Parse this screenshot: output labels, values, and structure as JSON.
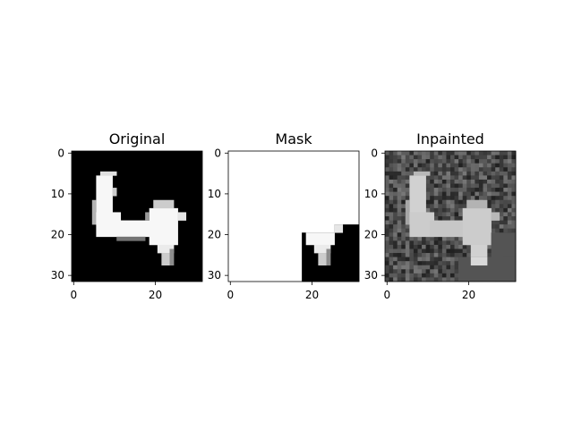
{
  "figure": {
    "background": "#ffffff",
    "axis_color": "#000000"
  },
  "chart_data": [
    {
      "type": "heatmap",
      "title": "Original",
      "colormap": "gray",
      "image_size": [
        32,
        32
      ],
      "xticks": [
        "0",
        "20"
      ],
      "yticks": [
        "0",
        "10",
        "20",
        "30"
      ],
      "xlim": [
        -0.5,
        31.5
      ],
      "ylim": [
        31.5,
        -0.5
      ],
      "content": "white handwritten digit '4' on black background",
      "rects": [
        {
          "x0": 6,
          "x1": 10,
          "y0": 6,
          "y1": 15,
          "v": 0.97
        },
        {
          "x0": 7,
          "x1": 11,
          "y0": 5,
          "y1": 6,
          "v": 0.88
        },
        {
          "x0": 5,
          "x1": 6,
          "y0": 12,
          "y1": 18,
          "v": 0.7
        },
        {
          "x0": 6,
          "x1": 12,
          "y0": 15,
          "y1": 21,
          "v": 0.97
        },
        {
          "x0": 11,
          "x1": 20,
          "y0": 17,
          "y1": 21,
          "v": 0.97
        },
        {
          "x0": 19,
          "x1": 26,
          "y0": 14,
          "y1": 23,
          "v": 0.97
        },
        {
          "x0": 20,
          "x1": 25,
          "y0": 12,
          "y1": 14,
          "v": 0.8
        },
        {
          "x0": 26,
          "x1": 28,
          "y0": 15,
          "y1": 17,
          "v": 0.9
        },
        {
          "x0": 21,
          "x1": 25,
          "y0": 23,
          "y1": 25,
          "v": 0.92
        },
        {
          "x0": 22,
          "x1": 24,
          "y0": 25,
          "y1": 28,
          "v": 0.8
        },
        {
          "x0": 24,
          "x1": 25,
          "y0": 24,
          "y1": 28,
          "v": 0.55
        },
        {
          "x0": 10,
          "x1": 11,
          "y0": 9,
          "y1": 11,
          "v": 0.8
        },
        {
          "x0": 18,
          "x1": 19,
          "y0": 15,
          "y1": 17,
          "v": 0.6
        },
        {
          "x0": 11,
          "x1": 18,
          "y0": 21,
          "y1": 22,
          "v": 0.45
        }
      ]
    },
    {
      "type": "heatmap",
      "title": "Mask",
      "colormap": "gray",
      "image_size": [
        32,
        32
      ],
      "xticks": [
        "0",
        "20"
      ],
      "yticks": [
        "0",
        "10",
        "20",
        "30"
      ],
      "xlim": [
        -0.5,
        31.5
      ],
      "ylim": [
        31.5,
        -0.5
      ],
      "content": "white everywhere except a black lower-right region (x 18-31, y 20-31) where the original pixels show through",
      "rects": [
        {
          "x0": 0,
          "x1": 32,
          "y0": 0,
          "y1": 32,
          "v": 1.0
        },
        {
          "x0": 26,
          "x1": 32,
          "y0": 18,
          "y1": 20,
          "v": 0.0
        },
        {
          "x0": 18,
          "x1": 32,
          "y0": 20,
          "y1": 32,
          "v": 0.0
        },
        {
          "x0": 19,
          "x1": 26,
          "y0": 20,
          "y1": 23,
          "v": 0.97
        },
        {
          "x0": 26,
          "x1": 28,
          "y0": 18,
          "y1": 20,
          "v": 0.9
        },
        {
          "x0": 21,
          "x1": 25,
          "y0": 23,
          "y1": 25,
          "v": 0.92
        },
        {
          "x0": 22,
          "x1": 24,
          "y0": 25,
          "y1": 28,
          "v": 0.8
        },
        {
          "x0": 24,
          "x1": 25,
          "y0": 24,
          "y1": 28,
          "v": 0.55
        }
      ]
    },
    {
      "type": "heatmap",
      "title": "Inpainted",
      "colormap": "gray",
      "image_size": [
        32,
        32
      ],
      "xticks": [
        "0",
        "20"
      ],
      "yticks": [
        "0",
        "10",
        "20",
        "30"
      ],
      "xlim": [
        -0.5,
        31.5
      ],
      "ylim": [
        31.5,
        -0.5
      ],
      "content": "noisy grey background with a softened light-grey digit '4'",
      "noise": {
        "mean": 0.3,
        "spread": 0.35
      },
      "rects": [
        {
          "x0": 6,
          "x1": 10,
          "y0": 6,
          "y1": 15,
          "v": 0.82
        },
        {
          "x0": 7,
          "x1": 11,
          "y0": 5,
          "y1": 6,
          "v": 0.72
        },
        {
          "x0": 5,
          "x1": 6,
          "y0": 12,
          "y1": 18,
          "v": 0.65
        },
        {
          "x0": 6,
          "x1": 12,
          "y0": 15,
          "y1": 21,
          "v": 0.8
        },
        {
          "x0": 11,
          "x1": 20,
          "y0": 17,
          "y1": 21,
          "v": 0.78
        },
        {
          "x0": 19,
          "x1": 26,
          "y0": 14,
          "y1": 23,
          "v": 0.8
        },
        {
          "x0": 20,
          "x1": 25,
          "y0": 12,
          "y1": 14,
          "v": 0.7
        },
        {
          "x0": 26,
          "x1": 28,
          "y0": 15,
          "y1": 17,
          "v": 0.72
        },
        {
          "x0": 21,
          "x1": 25,
          "y0": 23,
          "y1": 28,
          "v": 0.82
        },
        {
          "x0": 18,
          "x1": 32,
          "y0": 26,
          "y1": 32,
          "v": 0.33
        },
        {
          "x0": 26,
          "x1": 32,
          "y0": 20,
          "y1": 26,
          "v": 0.33
        },
        {
          "x0": 21,
          "x1": 25,
          "y0": 26,
          "y1": 28,
          "v": 0.85
        }
      ]
    }
  ]
}
